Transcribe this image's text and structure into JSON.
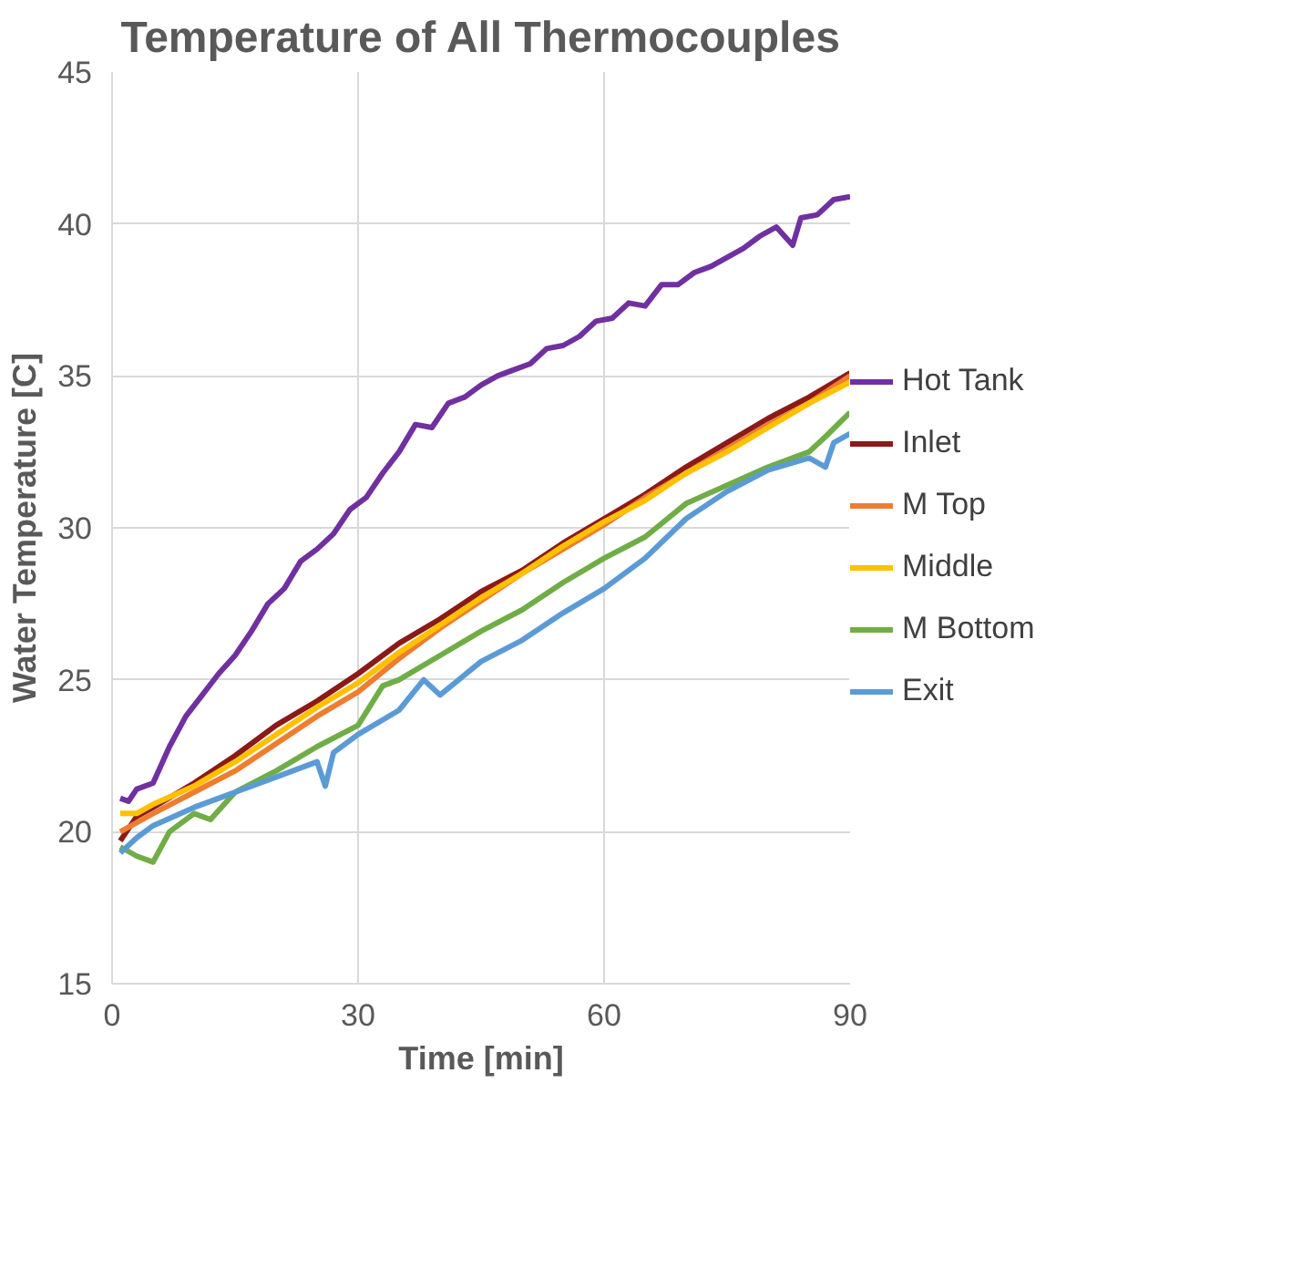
{
  "chart_data": {
    "type": "line",
    "title": "Temperature of All Thermocouples",
    "xlabel": "Time [min]",
    "ylabel": "Water Temperature [C]",
    "xlim": [
      0,
      90
    ],
    "xticks": [
      0,
      30,
      60,
      90
    ],
    "ylim": [
      15,
      45
    ],
    "yticks": [
      15,
      20,
      25,
      30,
      35,
      40,
      45
    ],
    "grid": true,
    "legend": "right",
    "line_style": "solid",
    "series": [
      {
        "name": "Hot Tank",
        "color": "#7030a0",
        "x": [
          1,
          2,
          3,
          5,
          7,
          9,
          11,
          13,
          15,
          17,
          19,
          21,
          23,
          25,
          27,
          29,
          31,
          33,
          35,
          37,
          39,
          41,
          43,
          45,
          47,
          49,
          51,
          53,
          55,
          57,
          59,
          61,
          63,
          65,
          67,
          69,
          71,
          73,
          75,
          77,
          79,
          81,
          83,
          84,
          86,
          88,
          90
        ],
        "values": [
          21.1,
          21.0,
          21.4,
          21.6,
          22.8,
          23.8,
          24.5,
          25.2,
          25.8,
          26.6,
          27.5,
          28.0,
          28.9,
          29.3,
          29.8,
          30.6,
          31.0,
          31.8,
          32.5,
          33.4,
          33.3,
          34.1,
          34.3,
          34.7,
          35.0,
          35.2,
          35.4,
          35.9,
          36.0,
          36.3,
          36.8,
          36.9,
          37.4,
          37.3,
          38.0,
          38.0,
          38.4,
          38.6,
          38.9,
          39.2,
          39.6,
          39.9,
          39.3,
          40.2,
          40.3,
          40.8,
          40.9
        ]
      },
      {
        "name": "Inlet",
        "color": "#8b1a1a",
        "x": [
          1,
          3,
          5,
          10,
          15,
          20,
          25,
          30,
          35,
          40,
          45,
          50,
          55,
          60,
          65,
          70,
          75,
          80,
          85,
          90
        ],
        "values": [
          19.7,
          20.5,
          20.8,
          21.6,
          22.5,
          23.5,
          24.3,
          25.2,
          26.2,
          27.0,
          27.9,
          28.6,
          29.5,
          30.3,
          31.1,
          32.0,
          32.8,
          33.6,
          34.3,
          35.1
        ]
      },
      {
        "name": "M Top",
        "color": "#ed7d31",
        "x": [
          1,
          5,
          10,
          15,
          20,
          25,
          30,
          35,
          40,
          45,
          50,
          55,
          60,
          65,
          70,
          75,
          80,
          85,
          90
        ],
        "values": [
          20.0,
          20.6,
          21.3,
          22.0,
          22.9,
          23.8,
          24.6,
          25.7,
          26.7,
          27.6,
          28.5,
          29.3,
          30.1,
          31.0,
          31.8,
          32.6,
          33.4,
          34.1,
          35.0
        ]
      },
      {
        "name": "Middle",
        "color": "#ffc000",
        "x": [
          1,
          3,
          5,
          10,
          15,
          20,
          25,
          30,
          35,
          40,
          45,
          50,
          55,
          60,
          65,
          70,
          75,
          80,
          85,
          90
        ],
        "values": [
          20.6,
          20.6,
          20.9,
          21.5,
          22.3,
          23.2,
          24.1,
          24.9,
          25.9,
          26.8,
          27.7,
          28.5,
          29.4,
          30.2,
          30.9,
          31.8,
          32.5,
          33.3,
          34.1,
          34.8
        ]
      },
      {
        "name": "M Bottom",
        "color": "#70ad47",
        "x": [
          1,
          3,
          5,
          7,
          10,
          12,
          15,
          20,
          25,
          30,
          33,
          35,
          40,
          45,
          50,
          55,
          60,
          65,
          70,
          75,
          80,
          85,
          87,
          90
        ],
        "values": [
          19.5,
          19.2,
          19.0,
          20.0,
          20.6,
          20.4,
          21.3,
          22.0,
          22.8,
          23.5,
          24.8,
          25.0,
          25.8,
          26.6,
          27.3,
          28.2,
          29.0,
          29.7,
          30.8,
          31.4,
          32.0,
          32.5,
          33.0,
          33.8
        ]
      },
      {
        "name": "Exit",
        "color": "#5b9bd5",
        "x": [
          1,
          3,
          5,
          10,
          15,
          20,
          25,
          26,
          27,
          30,
          35,
          38,
          40,
          45,
          50,
          55,
          60,
          65,
          70,
          75,
          80,
          85,
          87,
          88,
          90
        ],
        "values": [
          19.3,
          19.8,
          20.2,
          20.8,
          21.3,
          21.8,
          22.3,
          21.5,
          22.6,
          23.2,
          24.0,
          25.0,
          24.5,
          25.6,
          26.3,
          27.2,
          28.0,
          29.0,
          30.3,
          31.2,
          31.9,
          32.3,
          32.0,
          32.8,
          33.1
        ]
      }
    ]
  }
}
